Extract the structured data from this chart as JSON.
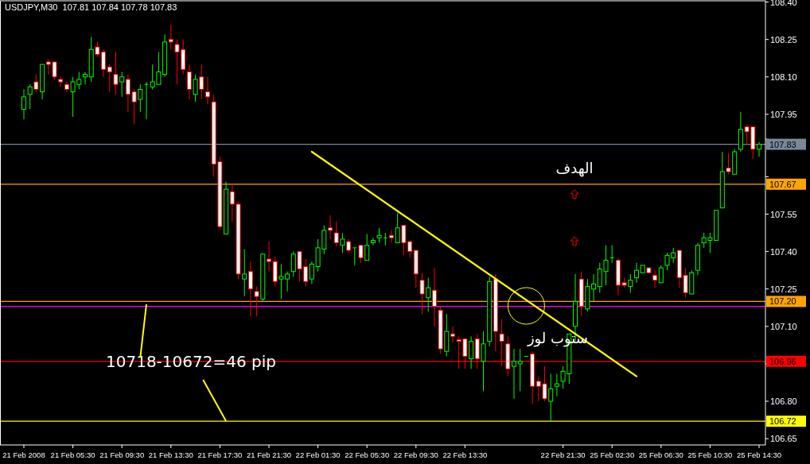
{
  "chart_data": {
    "type": "candlestick",
    "title": "USDJPY,M30  107.81 107.84 107.78 107.83",
    "categories": [
      "21 Feb 2008",
      null,
      null,
      null,
      null,
      null,
      null,
      null,
      "21 Feb 05:30",
      null,
      null,
      null,
      null,
      null,
      null,
      null,
      "21 Feb 09:30",
      null,
      null,
      null,
      null,
      null,
      null,
      null,
      "21 Feb 13:30",
      null,
      null,
      null,
      null,
      null,
      null,
      null,
      "21 Feb 17:30",
      null,
      null,
      null,
      null,
      null,
      null,
      null,
      "21 Feb 21:30",
      null,
      null,
      null,
      null,
      null,
      null,
      null,
      "22 Feb 01:30",
      null,
      null,
      null,
      null,
      null,
      null,
      null,
      "22 Feb 05:30",
      null,
      null,
      null,
      null,
      null,
      null,
      null,
      "22 Feb 09:30",
      null,
      null,
      null,
      null,
      null,
      null,
      null,
      "22 Feb 13:30",
      null,
      null,
      null,
      null,
      null,
      null,
      null,
      null,
      null,
      null,
      null,
      null,
      null,
      null,
      null,
      "22 Feb 21:30",
      null,
      null,
      null,
      null,
      null,
      null,
      null,
      "25 Feb 02:30",
      null,
      null,
      null,
      null,
      null,
      null,
      null,
      "25 Feb 06:30",
      null,
      null,
      null,
      null,
      null,
      null,
      null,
      "25 Feb 10:30",
      null,
      null,
      null,
      null,
      null,
      null,
      null,
      "25 Feb 14:30"
    ],
    "ohlc": [
      [
        107.97,
        108.05,
        107.93,
        108.02
      ],
      [
        108.03,
        108.07,
        107.97,
        108.06
      ],
      [
        108.08,
        108.11,
        108.04,
        108.05
      ],
      [
        108.04,
        108.15,
        108.01,
        108.15
      ],
      [
        108.16,
        108.17,
        108.11,
        108.15
      ],
      [
        108.16,
        108.16,
        108.09,
        108.1
      ],
      [
        108.09,
        108.1,
        108.06,
        108.08
      ],
      [
        108.07,
        108.08,
        108.04,
        108.05
      ],
      [
        108.04,
        108.1,
        107.94,
        108.08
      ],
      [
        108.07,
        108.12,
        108.05,
        108.09
      ],
      [
        108.1,
        108.12,
        108.07,
        108.11
      ],
      [
        108.1,
        108.26,
        108.08,
        108.21
      ],
      [
        108.22,
        108.24,
        108.18,
        108.19
      ],
      [
        108.2,
        108.21,
        108.1,
        108.13
      ],
      [
        108.14,
        108.15,
        108.04,
        108.12
      ],
      [
        108.11,
        108.2,
        108.03,
        108.07
      ],
      [
        108.08,
        108.12,
        108.02,
        108.1
      ],
      [
        108.09,
        108.11,
        107.96,
        108.03
      ],
      [
        108.04,
        108.05,
        107.91,
        108.0
      ],
      [
        108.01,
        108.07,
        107.96,
        108.05
      ],
      [
        108.07,
        108.08,
        107.93,
        108.07
      ],
      [
        108.06,
        108.15,
        108.05,
        108.08
      ],
      [
        108.07,
        108.2,
        108.07,
        108.12
      ],
      [
        108.11,
        108.27,
        108.1,
        108.24
      ],
      [
        108.25,
        108.31,
        108.21,
        108.24
      ],
      [
        108.23,
        108.25,
        108.07,
        108.2
      ],
      [
        108.21,
        108.25,
        108.11,
        108.13
      ],
      [
        108.12,
        108.15,
        108.01,
        108.05
      ],
      [
        108.03,
        108.11,
        108.0,
        108.09
      ],
      [
        108.1,
        108.15,
        108.01,
        108.05
      ],
      [
        108.04,
        108.1,
        107.99,
        108.02
      ],
      [
        108.0,
        108.03,
        107.7,
        107.75
      ],
      [
        107.76,
        107.78,
        107.49,
        107.5
      ],
      [
        107.47,
        107.68,
        107.47,
        107.65
      ],
      [
        107.64,
        107.67,
        107.52,
        107.59
      ],
      [
        107.59,
        107.6,
        107.29,
        107.31
      ],
      [
        107.29,
        107.41,
        107.22,
        107.31
      ],
      [
        107.32,
        107.36,
        107.14,
        107.25
      ],
      [
        107.24,
        107.26,
        107.14,
        107.22
      ],
      [
        107.21,
        107.39,
        107.2,
        107.39
      ],
      [
        107.37,
        107.44,
        107.32,
        107.36
      ],
      [
        107.36,
        107.38,
        107.26,
        107.28
      ],
      [
        107.29,
        107.35,
        107.21,
        107.3
      ],
      [
        107.29,
        107.32,
        107.24,
        107.31
      ],
      [
        107.32,
        107.4,
        107.3,
        107.39
      ],
      [
        107.4,
        107.4,
        107.28,
        107.33
      ],
      [
        107.34,
        107.37,
        107.26,
        107.28
      ],
      [
        107.29,
        107.36,
        107.27,
        107.35
      ],
      [
        107.34,
        107.45,
        107.32,
        107.415
      ],
      [
        107.41,
        107.505,
        107.39,
        107.485
      ],
      [
        107.495,
        107.545,
        107.45,
        107.485
      ],
      [
        107.475,
        107.52,
        107.42,
        107.435
      ],
      [
        107.425,
        107.475,
        107.395,
        107.45
      ],
      [
        107.44,
        107.45,
        107.395,
        107.405
      ],
      [
        107.415,
        107.415,
        107.345,
        107.415
      ],
      [
        107.425,
        107.425,
        107.355,
        107.375
      ],
      [
        107.365,
        107.47,
        107.365,
        107.425
      ],
      [
        107.435,
        107.455,
        107.425,
        107.445
      ],
      [
        107.455,
        107.495,
        107.435,
        107.465
      ],
      [
        107.455,
        107.475,
        107.425,
        107.455
      ],
      [
        107.465,
        107.485,
        107.435,
        107.455
      ],
      [
        107.435,
        107.555,
        107.435,
        107.495
      ],
      [
        107.505,
        107.505,
        107.385,
        107.435
      ],
      [
        107.44,
        107.445,
        107.375,
        107.4
      ],
      [
        107.405,
        107.405,
        107.255,
        107.31
      ],
      [
        107.285,
        107.315,
        107.15,
        107.23
      ],
      [
        107.215,
        107.295,
        107.16,
        107.255
      ],
      [
        107.245,
        107.335,
        107.1,
        107.18
      ],
      [
        107.165,
        107.18,
        106.99,
        107.01
      ],
      [
        107.0,
        107.15,
        106.98,
        107.08
      ],
      [
        107.07,
        107.1,
        107.035,
        107.06
      ],
      [
        107.047,
        107.06,
        106.93,
        107.04
      ],
      [
        107.05,
        107.05,
        106.93,
        106.98
      ],
      [
        106.97,
        107.06,
        106.93,
        107.04
      ],
      [
        107.05,
        107.07,
        106.93,
        106.97
      ],
      [
        106.96,
        107.08,
        106.84,
        107.03
      ],
      [
        107.04,
        107.3,
        107.02,
        107.28
      ],
      [
        107.29,
        107.31,
        107.0,
        107.08
      ],
      [
        107.07,
        107.13,
        106.94,
        107.04
      ],
      [
        107.03,
        107.06,
        106.9,
        106.93
      ],
      [
        106.94,
        107.01,
        106.81,
        106.96
      ],
      [
        106.95,
        107.01,
        106.84,
        106.96
      ],
      [
        106.98,
        106.98,
        106.98,
        106.98
      ],
      [
        106.99,
        107.0,
        106.79,
        106.86
      ],
      [
        106.88,
        106.9,
        106.8,
        106.86
      ],
      [
        106.87,
        106.94,
        106.8,
        106.81
      ],
      [
        106.8,
        106.91,
        106.72,
        106.85
      ],
      [
        106.86,
        106.91,
        106.82,
        106.87
      ],
      [
        106.88,
        106.94,
        106.85,
        106.92
      ],
      [
        106.91,
        107.07,
        106.87,
        107.07
      ],
      [
        107.1,
        107.31,
        107.04,
        107.2
      ],
      [
        107.29,
        107.32,
        107.14,
        107.18
      ],
      [
        107.17,
        107.29,
        107.16,
        107.26
      ],
      [
        107.25,
        107.31,
        107.2,
        107.27
      ],
      [
        107.26,
        107.355,
        107.235,
        107.33
      ],
      [
        107.32,
        107.425,
        107.265,
        107.365
      ],
      [
        107.375,
        107.425,
        107.355,
        107.375
      ],
      [
        107.365,
        107.375,
        107.225,
        107.265
      ],
      [
        107.275,
        107.295,
        107.255,
        107.265
      ],
      [
        107.26,
        107.31,
        107.235,
        107.285
      ],
      [
        107.295,
        107.355,
        107.275,
        107.325
      ],
      [
        107.315,
        107.345,
        107.315,
        107.345
      ],
      [
        107.335,
        107.335,
        107.315,
        107.315
      ],
      [
        107.305,
        107.325,
        107.255,
        107.285
      ],
      [
        107.275,
        107.345,
        107.275,
        107.335
      ],
      [
        107.345,
        107.395,
        107.325,
        107.385
      ],
      [
        107.375,
        107.415,
        107.355,
        107.395
      ],
      [
        107.405,
        107.405,
        107.255,
        107.295
      ],
      [
        107.305,
        107.335,
        107.215,
        107.235
      ],
      [
        107.23,
        107.325,
        107.23,
        107.315
      ],
      [
        107.325,
        107.435,
        107.305,
        107.425
      ],
      [
        107.435,
        107.475,
        107.415,
        107.455
      ],
      [
        107.445,
        107.475,
        107.395,
        107.455
      ],
      [
        107.445,
        107.565,
        107.445,
        107.565
      ],
      [
        107.575,
        107.8,
        107.575,
        107.72
      ],
      [
        107.735,
        107.795,
        107.71,
        107.72
      ],
      [
        107.71,
        107.81,
        107.71,
        107.8
      ],
      [
        107.81,
        107.96,
        107.8,
        107.89
      ],
      [
        107.9,
        107.91,
        107.83,
        107.88
      ],
      [
        107.9,
        107.9,
        107.77,
        107.81
      ],
      [
        107.81,
        107.84,
        107.78,
        107.83
      ]
    ],
    "colors": [
      "#00ff00",
      "#00ff00",
      "#ff0000",
      "#00ff00",
      "#ff0000",
      "#ff0000",
      "#ff0000",
      "#ff0000",
      "#00ff00",
      "#00ff00",
      "#00ff00",
      "#00ff00",
      "#ff0000",
      "#ff0000",
      "#ff0000",
      "#ff0000",
      "#00ff00",
      "#ff0000",
      "#ff0000",
      "#00ff00",
      "#00ff00",
      "#00ff00",
      "#00ff00",
      "#00ff00",
      "#ff0000",
      "#ff0000",
      "#ff0000",
      "#ff0000",
      "#00ff00",
      "#ff0000",
      "#ff0000",
      "#ff0000",
      "#ff0000",
      "#00ff00",
      "#ff0000",
      "#ff0000",
      "#00ff00",
      "#ff0000",
      "#ff0000",
      "#00ff00",
      "#ff0000",
      "#ff0000",
      "#00ff00",
      "#00ff00",
      "#00ff00",
      "#ff0000",
      "#ff0000",
      "#00ff00",
      "#00ff00",
      "#00ff00",
      "#ff0000",
      "#ff0000",
      "#00ff00",
      "#ff0000",
      "#00ff00",
      "#ff0000",
      "#00ff00",
      "#00ff00",
      "#00ff00",
      "#00ff00",
      "#ff0000",
      "#00ff00",
      "#ff0000",
      "#ff0000",
      "#ff0000",
      "#ff0000",
      "#00ff00",
      "#ff0000",
      "#ff0000",
      "#00ff00",
      "#ff0000",
      "#ff0000",
      "#ff0000",
      "#00ff00",
      "#ff0000",
      "#00ff00",
      "#00ff00",
      "#ff0000",
      "#ff0000",
      "#ff0000",
      "#00ff00",
      "#00ff00",
      "#00ff00",
      "#ff0000",
      "#ff0000",
      "#ff0000",
      "#00ff00",
      "#00ff00",
      "#00ff00",
      "#00ff00",
      "#00ff00",
      "#ff0000",
      "#00ff00",
      "#00ff00",
      "#00ff00",
      "#00ff00",
      "#00ff00",
      "#ff0000",
      "#ff0000",
      "#00ff00",
      "#00ff00",
      "#00ff00",
      "#ff0000",
      "#ff0000",
      "#00ff00",
      "#00ff00",
      "#00ff00",
      "#ff0000",
      "#ff0000",
      "#00ff00",
      "#00ff00",
      "#00ff00",
      "#00ff00",
      "#00ff00",
      "#00ff00",
      "#ff0000",
      "#00ff00",
      "#00ff00",
      "#ff0000",
      "#ff0000",
      "#00ff00"
    ],
    "series": [
      {
        "type": "line",
        "color": "#ffff00",
        "values": [
          null,
          null,
          null,
          null,
          null,
          null,
          null,
          null,
          null,
          null,
          null,
          null,
          null,
          null,
          null,
          null,
          null,
          null,
          null,
          null,
          null,
          null,
          null,
          null,
          null,
          null,
          null,
          null,
          null,
          null,
          null,
          null,
          null,
          null,
          null,
          null,
          null,
          null,
          null,
          null,
          null,
          null,
          null,
          null,
          null,
          null,
          null,
          107.8,
          null,
          null,
          null,
          null,
          null,
          null,
          null,
          null,
          null,
          null,
          null,
          null,
          null,
          null,
          null,
          null,
          null,
          null,
          null,
          null,
          null,
          null,
          null,
          null,
          null,
          null,
          null,
          null,
          null,
          null,
          null,
          null,
          null,
          null,
          null,
          null,
          null,
          null,
          null,
          null,
          null,
          null,
          null,
          null,
          null,
          null,
          null,
          null,
          null,
          null,
          null,
          null,
          106.9,
          null,
          null,
          null,
          null,
          null,
          null,
          null,
          null,
          null,
          null,
          null,
          null,
          null,
          null,
          null,
          null,
          null,
          null,
          null,
          null
        ]
      }
    ],
    "ylim": [
      106.625,
      108.405
    ],
    "yticks": [
      {
        "value": 106.65,
        "label": "106.65"
      },
      {
        "value": 106.8,
        "label": "106.80"
      },
      {
        "value": 106.95,
        "label": null
      },
      {
        "value": 107.1,
        "label": "107.10"
      },
      {
        "value": 107.25,
        "label": "107.25"
      },
      {
        "value": 107.4,
        "label": "107.40"
      },
      {
        "value": 107.55,
        "label": "107.55"
      },
      {
        "value": 107.7,
        "label": null
      },
      {
        "value": 107.85,
        "label": null
      },
      {
        "value": 107.95,
        "label": "107.95"
      },
      {
        "value": 108.1,
        "label": "108.10"
      },
      {
        "value": 108.25,
        "label": "108.25"
      },
      {
        "value": 108.4,
        "label": "108.40"
      }
    ],
    "ref_lines": [
      {
        "axis": "y",
        "value": 107.83,
        "label": "107.83",
        "color": "#778899"
      },
      {
        "axis": "y",
        "value": 107.67,
        "label": "107.67",
        "color": "#ffa500"
      },
      {
        "axis": "y",
        "value": 107.2,
        "label": "107.20",
        "color": "#ffa500"
      },
      {
        "axis": "y",
        "value": 107.18,
        "color": "#ff00ff"
      },
      {
        "axis": "y",
        "value": 106.96,
        "label": "106.96",
        "color": "#ff0000"
      },
      {
        "axis": "y",
        "value": 106.72,
        "label": "106.72",
        "color": "#ffff00"
      }
    ],
    "annotations": [
      {
        "text": "10718-10672=46 pip",
        "y": 106.96
      },
      "الهدف",
      "ستوب لوز"
    ]
  }
}
